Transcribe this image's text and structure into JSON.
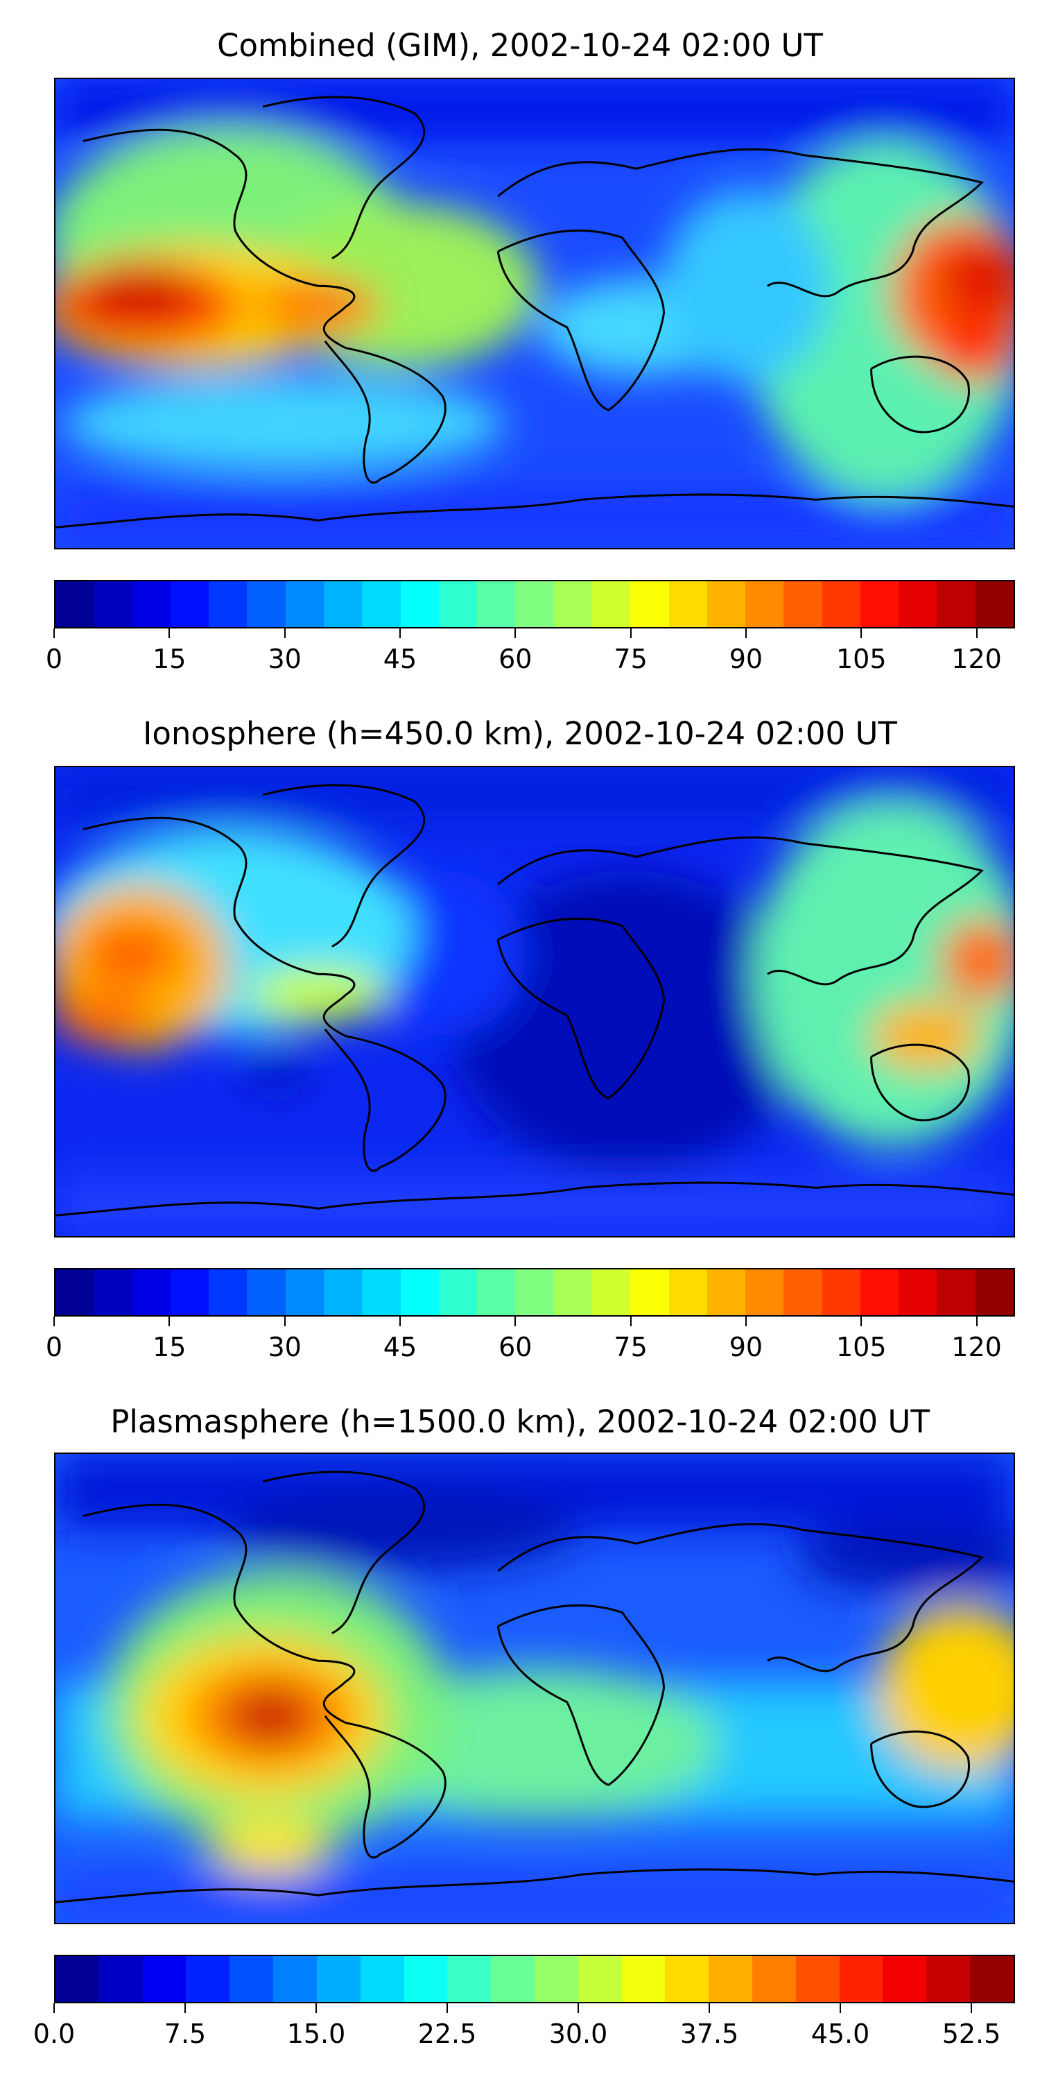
{
  "panels": [
    {
      "title": "Combined (GIM), 2002-10-24 02:00 UT",
      "colorbar": {
        "vmin": 0,
        "vmax": 125,
        "levels": 25,
        "ticks": [
          0,
          15,
          30,
          45,
          60,
          75,
          90,
          105,
          120
        ],
        "tick_labels": [
          "0",
          "15",
          "30",
          "45",
          "60",
          "75",
          "90",
          "105",
          "120"
        ]
      }
    },
    {
      "title": "Ionosphere  (h=450.0 km), 2002-10-24 02:00 UT",
      "colorbar": {
        "vmin": 0,
        "vmax": 125,
        "levels": 25,
        "ticks": [
          0,
          15,
          30,
          45,
          60,
          75,
          90,
          105,
          120
        ],
        "tick_labels": [
          "0",
          "15",
          "30",
          "45",
          "60",
          "75",
          "90",
          "105",
          "120"
        ]
      }
    },
    {
      "title": "Plasmasphere (h=1500.0 km), 2002-10-24 02:00 UT",
      "colorbar": {
        "vmin": 0,
        "vmax": 55,
        "levels": 22,
        "ticks": [
          0,
          7.5,
          15,
          22.5,
          30,
          37.5,
          45,
          52.5
        ],
        "tick_labels": [
          "0.0",
          "7.5",
          "15.0",
          "22.5",
          "30.0",
          "37.5",
          "45.0",
          "52.5"
        ]
      }
    }
  ],
  "colormap": "jet",
  "colors": {
    "coastline": "#000000",
    "background": "#ffffff"
  }
}
